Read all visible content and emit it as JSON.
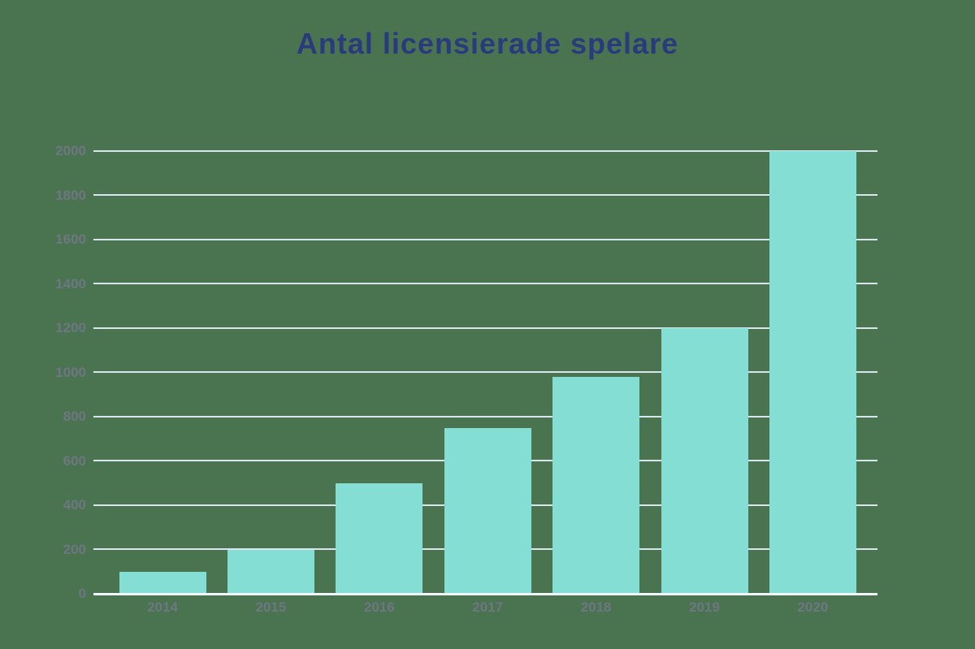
{
  "title": "Antal licensierade spelare",
  "colors": {
    "background": "#4A7450",
    "bar": "#85DED3",
    "gridline": "#D9E5EE",
    "baseline": "#F2F7FB",
    "title_text": "#2A3B7D",
    "axis_label_text": "#6F7683"
  },
  "chart_data": {
    "type": "bar",
    "title": "Antal licensierade spelare",
    "categories": [
      "2014",
      "2015",
      "2016",
      "2017",
      "2018",
      "2019",
      "2020"
    ],
    "values": [
      100,
      200,
      500,
      750,
      980,
      1200,
      2000
    ],
    "xlabel": "",
    "ylabel": "",
    "ylim": [
      0,
      2000
    ],
    "yticks": [
      0,
      200,
      400,
      600,
      800,
      1000,
      1200,
      1400,
      1600,
      1800,
      2000
    ],
    "grid": true,
    "legend": "none"
  }
}
